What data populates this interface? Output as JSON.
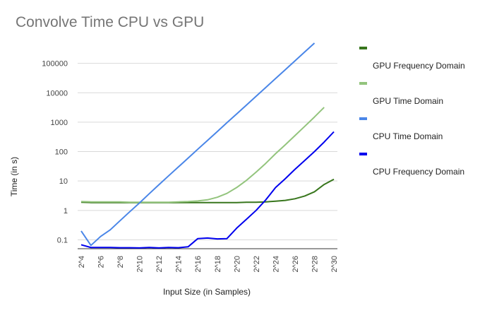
{
  "chart_data": {
    "type": "line",
    "title": "Convolve Time CPU vs GPU",
    "xlabel": "Input Size (in Samples)",
    "ylabel": "Time (in s)",
    "y_scale": "log",
    "ylim": [
      0.05,
      800000
    ],
    "legend_position": "right",
    "grid": true,
    "y_ticks": [
      "0.1",
      "1",
      "10",
      "100",
      "1000",
      "10000",
      "100000"
    ],
    "x_tick_labels": [
      "2^4",
      "2^6",
      "2^8",
      "2^10",
      "2^12",
      "2^14",
      "2^16",
      "2^18",
      "2^20",
      "2^22",
      "2^24",
      "2^26",
      "2^28",
      "2^30"
    ],
    "x": [
      "2^4",
      "2^5",
      "2^6",
      "2^7",
      "2^8",
      "2^9",
      "2^10",
      "2^11",
      "2^12",
      "2^13",
      "2^14",
      "2^15",
      "2^16",
      "2^17",
      "2^18",
      "2^19",
      "2^20",
      "2^21",
      "2^22",
      "2^23",
      "2^24",
      "2^25",
      "2^26",
      "2^27",
      "2^28",
      "2^29",
      "2^30"
    ],
    "series": [
      {
        "name": "GPU Frequency Domain",
        "color": "#38761d",
        "values": [
          1.9,
          1.85,
          1.85,
          1.85,
          1.85,
          1.85,
          1.85,
          1.85,
          1.85,
          1.85,
          1.85,
          1.85,
          1.85,
          1.85,
          1.85,
          1.85,
          1.85,
          1.9,
          1.9,
          1.95,
          2.05,
          2.2,
          2.5,
          3.1,
          4.3,
          7.6,
          11.5
        ]
      },
      {
        "name": "GPU Time Domain",
        "color": "#93c47d",
        "values": [
          2.0,
          1.95,
          1.95,
          1.95,
          1.95,
          1.9,
          1.9,
          1.9,
          1.9,
          1.9,
          1.95,
          2.0,
          2.1,
          2.3,
          2.8,
          3.8,
          6.0,
          10.5,
          20,
          40,
          85,
          170,
          350,
          720,
          1500,
          3200,
          0
        ]
      },
      {
        "name": "CPU Time Domain",
        "color": "#4a86e8",
        "values": [
          0.2,
          0.065,
          0.13,
          0.22,
          0.45,
          0.9,
          1.8,
          3.7,
          7.5,
          15,
          30,
          60,
          120,
          240,
          480,
          960,
          1900,
          3800,
          7600,
          15200,
          30400,
          60800,
          121600,
          243200,
          486400,
          0,
          0
        ]
      },
      {
        "name": "CPU Frequency Domain",
        "color": "#0000ee",
        "values": [
          0.068,
          0.055,
          0.055,
          0.055,
          0.054,
          0.054,
          0.053,
          0.055,
          0.053,
          0.055,
          0.054,
          0.058,
          0.11,
          0.115,
          0.108,
          0.11,
          0.25,
          0.5,
          1.0,
          2.3,
          6.0,
          12,
          25,
          50,
          100,
          210,
          470
        ]
      }
    ]
  }
}
